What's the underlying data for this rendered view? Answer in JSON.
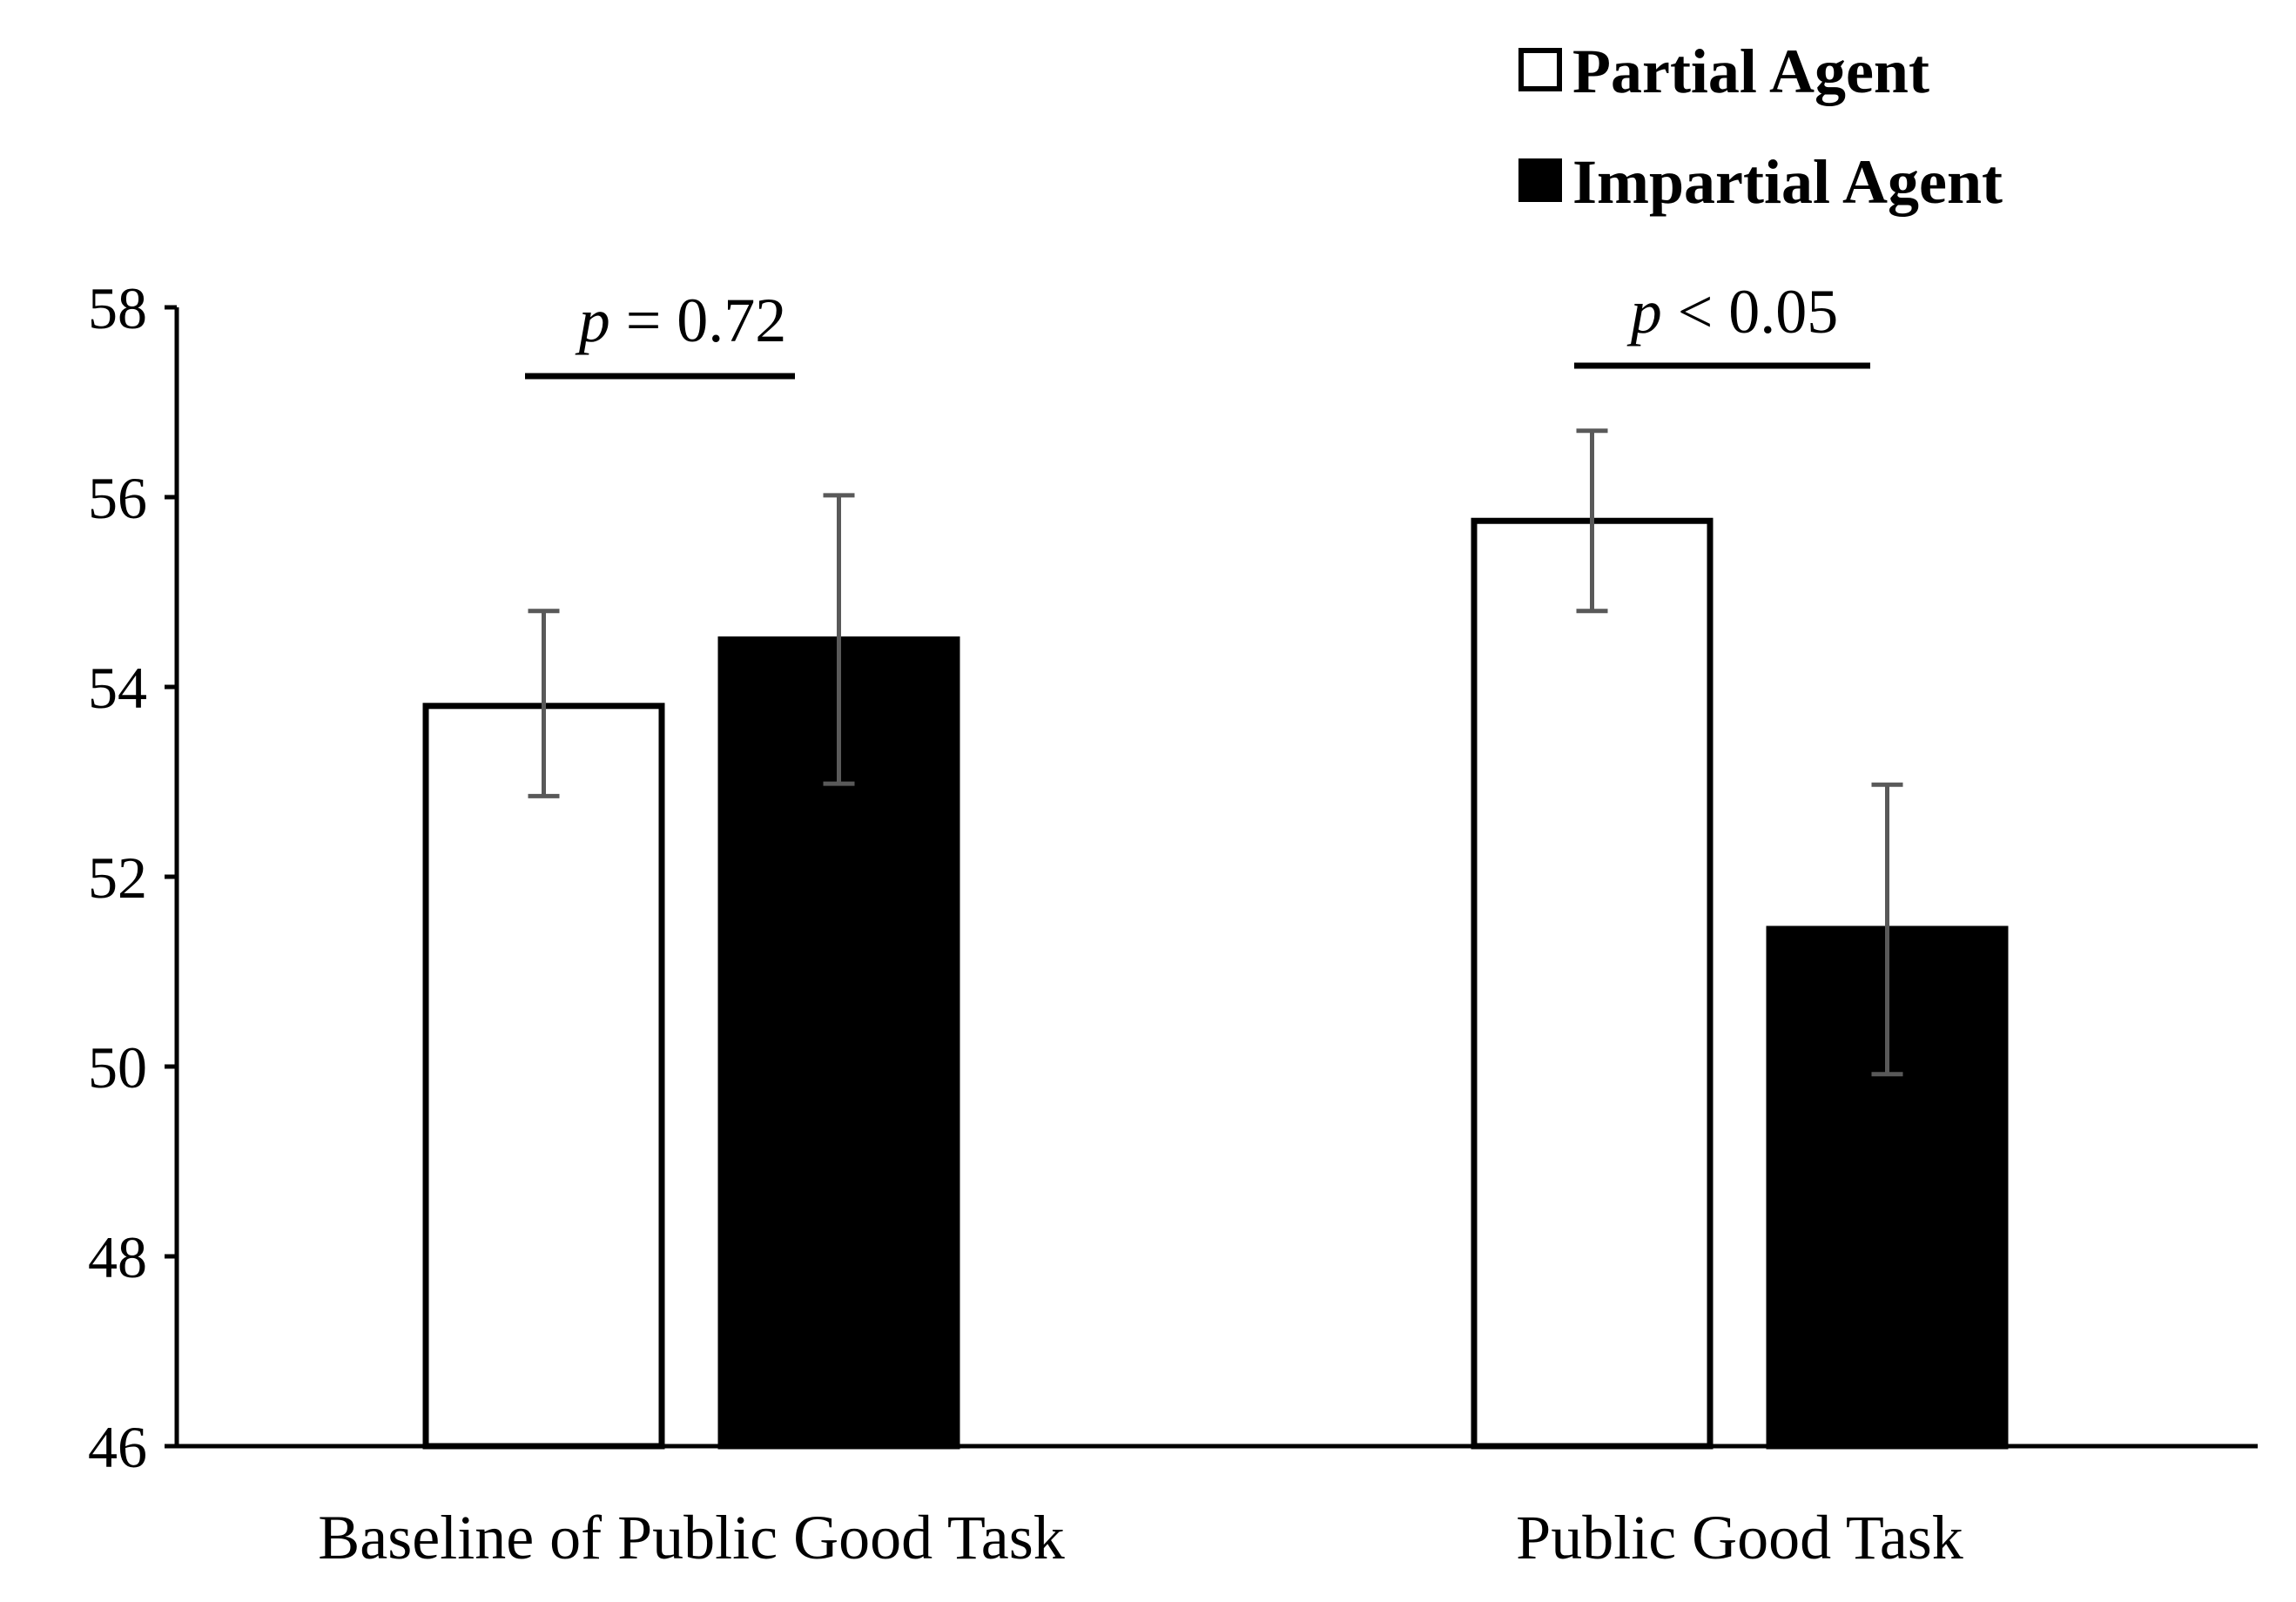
{
  "chart_data": {
    "type": "bar",
    "title": "",
    "xlabel": "",
    "ylabel": "",
    "ylim": [
      46,
      58
    ],
    "yticks": [
      46,
      48,
      50,
      52,
      54,
      56,
      58
    ],
    "ytick_labels": [
      "46",
      "48",
      "50",
      "52",
      "54",
      "56",
      "58"
    ],
    "categories": [
      "Baseline of Public Good Task",
      "Public Good Task"
    ],
    "series": [
      {
        "name": "Partial Agent",
        "fill": "#ffffff",
        "values": [
          53.8,
          55.75
        ],
        "error_low": [
          52.85,
          54.8
        ],
        "error_high": [
          54.8,
          56.7
        ]
      },
      {
        "name": "Impartial Agent",
        "fill": "#000000",
        "values": [
          54.5,
          51.45
        ],
        "error_low": [
          52.98,
          49.92
        ],
        "error_high": [
          56.02,
          52.97
        ]
      }
    ],
    "legend": {
      "position": "top-right",
      "items": [
        "Partial Agent",
        "Impartial Agent"
      ]
    },
    "annotations": [
      {
        "category_index": 0,
        "italic": "p",
        "text": " = 0.72"
      },
      {
        "category_index": 1,
        "italic": "p",
        "text": " < 0.05"
      }
    ],
    "colors": {
      "axis": "#000000",
      "error_bar": "#595959",
      "bar_stroke": "#000000"
    }
  }
}
